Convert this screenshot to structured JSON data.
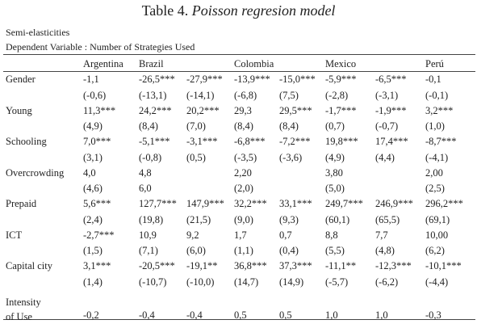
{
  "header": {
    "title_label": "Table 4.",
    "title_text": "Poisson regresion model",
    "note": "Semi-elasticities",
    "dependent": "Dependent Variable : Number of Strategies Used"
  },
  "table": {
    "columns": [
      "Argentina",
      "Brazil",
      "Colombia",
      "Mexico",
      "Perú"
    ],
    "rows": [
      {
        "label": "Gender",
        "values": [
          "-1,1",
          "-26,5***",
          "-27,9***",
          "-13,9***",
          "-15,0***",
          "-5,9***",
          "-6,5***",
          "-0,1"
        ],
        "se": [
          "(-0,6)",
          "(-13,1)",
          "(-14,1)",
          "(-6,8)",
          "(7,5)",
          "(-2,8)",
          "(-3,1)",
          "(-0,1)"
        ]
      },
      {
        "label": "Young",
        "values": [
          "11,3***",
          "24,2***",
          "20,2***",
          "29,3",
          "29,5***",
          "-1,7***",
          "-1,9***",
          "3,2***"
        ],
        "se": [
          "(4,9)",
          "(8,4)",
          "(7,0)",
          "(8,4)",
          "(8,4)",
          "(0,7)",
          "(-0,7)",
          "(1,0)"
        ]
      },
      {
        "label": "Schooling",
        "values": [
          "7,0***",
          "-5,1***",
          "-3,1***",
          "-6,8***",
          "-7,2***",
          "19,8***",
          "17,4***",
          "-8,7***"
        ],
        "se": [
          "(3,1)",
          "(-0,8)",
          "(0,5)",
          "(-3,5)",
          "(-3,6)",
          "(4,9)",
          "(4,4)",
          "(-4,1)"
        ]
      },
      {
        "label": "Overcrowding",
        "values": [
          "4,0",
          "4,8",
          null,
          "2,20",
          null,
          "3,80",
          null,
          "2,00"
        ],
        "se": [
          "(4,6)",
          "6,0",
          null,
          "(2,0)",
          null,
          "(5,0)",
          null,
          "(2,5)"
        ]
      },
      {
        "label": "Prepaid",
        "values": [
          "5,6***",
          "127,7***",
          "147,9***",
          "32,2***",
          "33,1***",
          "249,7***",
          "246,9***",
          "296,2***"
        ],
        "se": [
          "(2,4)",
          "(19,8)",
          "(21,5)",
          "(9,0)",
          "(9,3)",
          "(60,1)",
          "(65,5)",
          "(69,1)"
        ]
      },
      {
        "label": "ICT",
        "values": [
          "-2,7***",
          "10,9",
          "9,2",
          "1,7",
          "0,7",
          "8,8",
          "7,7",
          "10,00"
        ],
        "se": [
          "(1,5)",
          "(7,1)",
          "(6,0)",
          "(1,1)",
          "(0,4)",
          "(5,5)",
          "(4,8)",
          "(6,2)"
        ]
      },
      {
        "label": "Capital city",
        "values": [
          "3,1***",
          "-20,5***",
          "-19,1**",
          "36,8***",
          "37,3***",
          "-11,1**",
          "-12,3***",
          "-10,1***"
        ],
        "se": [
          "(1,4)",
          "(-10,7)",
          "(-10,0)",
          "(14,7)",
          "(14,9)",
          "(-5,7)",
          "(-6,2)",
          "(-4,4)"
        ]
      },
      {
        "label": "Intensity of Use",
        "values": [
          "-0,2",
          "-0,4",
          "-0,4",
          "0,5",
          "0,5",
          "1,0",
          "1,0",
          "-0,3"
        ]
      }
    ]
  }
}
